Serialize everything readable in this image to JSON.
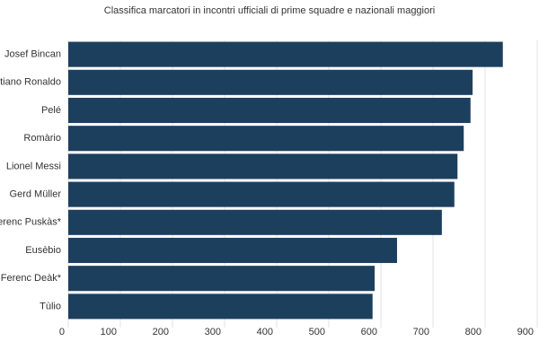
{
  "chart_data": {
    "type": "barh",
    "title": "Classifica marcatori in incontri ufficiali di prime squadre e nazionali maggiori",
    "categories": [
      "Josef Bincan",
      "tiano Ronaldo",
      "Pelé",
      "Romàrio",
      "Lionel Messi",
      "Gerd Müller",
      "erenc Puskàs*",
      "Eusèbio",
      "Ferenc Deàk*",
      "Tùlio"
    ],
    "values": [
      834,
      776,
      772,
      759,
      747,
      741,
      717,
      631,
      588,
      584
    ],
    "color": "#1d3f5e",
    "xlim": [
      0,
      900
    ],
    "xticks": [
      0,
      100,
      200,
      300,
      400,
      500,
      600,
      700,
      800,
      900
    ],
    "grid": true
  }
}
